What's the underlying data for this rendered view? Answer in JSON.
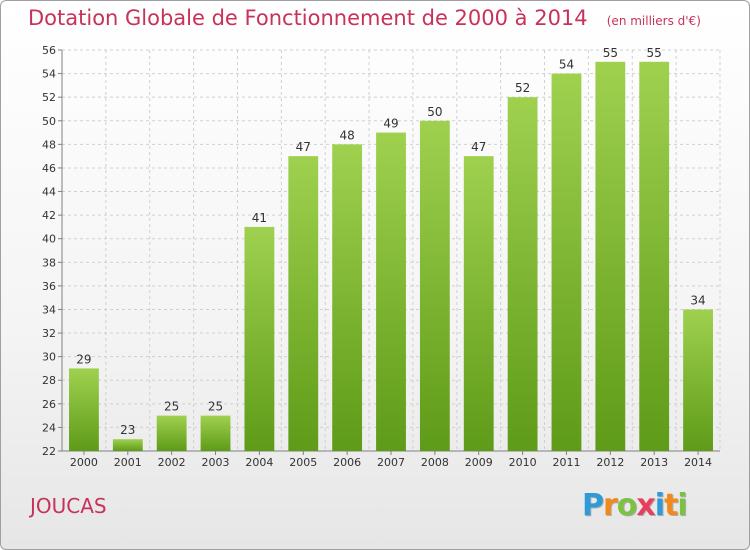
{
  "title": "Dotation Globale de Fonctionnement de 2000 à 2014",
  "unit": "(en milliers d'€)",
  "commune": "JOUCAS",
  "brand": {
    "letters": [
      "P",
      "r",
      "o",
      "x",
      "i",
      "t",
      "i"
    ],
    "colors": [
      "#2e9ad6",
      "#f08a1c",
      "#7cc242",
      "#e83e5c",
      "#2e9ad6",
      "#f08a1c",
      "#7cc242"
    ]
  },
  "colors": {
    "bar_top": "#9fd14f",
    "bar_bottom": "#5e9b18",
    "title": "#c8325a",
    "grid": "#d0d0d0"
  },
  "chart_data": {
    "type": "bar",
    "title": "Dotation Globale de Fonctionnement de 2000 à 2014",
    "categories": [
      "2000",
      "2001",
      "2002",
      "2003",
      "2004",
      "2005",
      "2006",
      "2007",
      "2008",
      "2009",
      "2010",
      "2011",
      "2012",
      "2013",
      "2014"
    ],
    "values": [
      29,
      23,
      25,
      25,
      41,
      47,
      48,
      49,
      50,
      47,
      52,
      54,
      55,
      55,
      34
    ],
    "ylim": [
      22,
      56
    ],
    "yticks": [
      22,
      24,
      26,
      28,
      30,
      32,
      34,
      36,
      38,
      40,
      42,
      44,
      46,
      48,
      50,
      52,
      54,
      56
    ],
    "grid": true,
    "data_labels": true
  }
}
